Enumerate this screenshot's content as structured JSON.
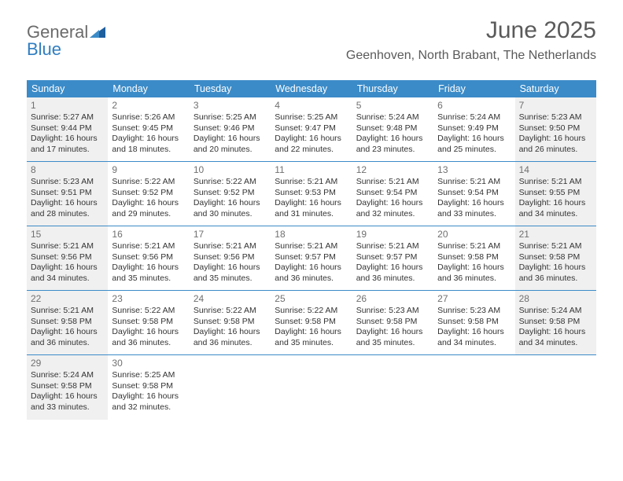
{
  "logo": {
    "text1": "General",
    "text2": "Blue"
  },
  "title": "June 2025",
  "location": "Geenhoven, North Brabant, The Netherlands",
  "colors": {
    "header_bg": "#3b8bc8",
    "header_text": "#ffffff",
    "shade_bg": "#f0f0f0",
    "border": "#3b8bc8",
    "body_text": "#333333",
    "num_text": "#707070",
    "title_text": "#5a5a5a",
    "logo_gray": "#6b6b6b",
    "logo_blue": "#2f7ec2"
  },
  "day_headers": [
    "Sunday",
    "Monday",
    "Tuesday",
    "Wednesday",
    "Thursday",
    "Friday",
    "Saturday"
  ],
  "cells": [
    {
      "num": "1",
      "shade": true,
      "sunrise": "Sunrise: 5:27 AM",
      "sunset": "Sunset: 9:44 PM",
      "day1": "Daylight: 16 hours",
      "day2": "and 17 minutes."
    },
    {
      "num": "2",
      "shade": false,
      "sunrise": "Sunrise: 5:26 AM",
      "sunset": "Sunset: 9:45 PM",
      "day1": "Daylight: 16 hours",
      "day2": "and 18 minutes."
    },
    {
      "num": "3",
      "shade": false,
      "sunrise": "Sunrise: 5:25 AM",
      "sunset": "Sunset: 9:46 PM",
      "day1": "Daylight: 16 hours",
      "day2": "and 20 minutes."
    },
    {
      "num": "4",
      "shade": false,
      "sunrise": "Sunrise: 5:25 AM",
      "sunset": "Sunset: 9:47 PM",
      "day1": "Daylight: 16 hours",
      "day2": "and 22 minutes."
    },
    {
      "num": "5",
      "shade": false,
      "sunrise": "Sunrise: 5:24 AM",
      "sunset": "Sunset: 9:48 PM",
      "day1": "Daylight: 16 hours",
      "day2": "and 23 minutes."
    },
    {
      "num": "6",
      "shade": false,
      "sunrise": "Sunrise: 5:24 AM",
      "sunset": "Sunset: 9:49 PM",
      "day1": "Daylight: 16 hours",
      "day2": "and 25 minutes."
    },
    {
      "num": "7",
      "shade": true,
      "sunrise": "Sunrise: 5:23 AM",
      "sunset": "Sunset: 9:50 PM",
      "day1": "Daylight: 16 hours",
      "day2": "and 26 minutes."
    },
    {
      "num": "8",
      "shade": true,
      "sunrise": "Sunrise: 5:23 AM",
      "sunset": "Sunset: 9:51 PM",
      "day1": "Daylight: 16 hours",
      "day2": "and 28 minutes."
    },
    {
      "num": "9",
      "shade": false,
      "sunrise": "Sunrise: 5:22 AM",
      "sunset": "Sunset: 9:52 PM",
      "day1": "Daylight: 16 hours",
      "day2": "and 29 minutes."
    },
    {
      "num": "10",
      "shade": false,
      "sunrise": "Sunrise: 5:22 AM",
      "sunset": "Sunset: 9:52 PM",
      "day1": "Daylight: 16 hours",
      "day2": "and 30 minutes."
    },
    {
      "num": "11",
      "shade": false,
      "sunrise": "Sunrise: 5:21 AM",
      "sunset": "Sunset: 9:53 PM",
      "day1": "Daylight: 16 hours",
      "day2": "and 31 minutes."
    },
    {
      "num": "12",
      "shade": false,
      "sunrise": "Sunrise: 5:21 AM",
      "sunset": "Sunset: 9:54 PM",
      "day1": "Daylight: 16 hours",
      "day2": "and 32 minutes."
    },
    {
      "num": "13",
      "shade": false,
      "sunrise": "Sunrise: 5:21 AM",
      "sunset": "Sunset: 9:54 PM",
      "day1": "Daylight: 16 hours",
      "day2": "and 33 minutes."
    },
    {
      "num": "14",
      "shade": true,
      "sunrise": "Sunrise: 5:21 AM",
      "sunset": "Sunset: 9:55 PM",
      "day1": "Daylight: 16 hours",
      "day2": "and 34 minutes."
    },
    {
      "num": "15",
      "shade": true,
      "sunrise": "Sunrise: 5:21 AM",
      "sunset": "Sunset: 9:56 PM",
      "day1": "Daylight: 16 hours",
      "day2": "and 34 minutes."
    },
    {
      "num": "16",
      "shade": false,
      "sunrise": "Sunrise: 5:21 AM",
      "sunset": "Sunset: 9:56 PM",
      "day1": "Daylight: 16 hours",
      "day2": "and 35 minutes."
    },
    {
      "num": "17",
      "shade": false,
      "sunrise": "Sunrise: 5:21 AM",
      "sunset": "Sunset: 9:56 PM",
      "day1": "Daylight: 16 hours",
      "day2": "and 35 minutes."
    },
    {
      "num": "18",
      "shade": false,
      "sunrise": "Sunrise: 5:21 AM",
      "sunset": "Sunset: 9:57 PM",
      "day1": "Daylight: 16 hours",
      "day2": "and 36 minutes."
    },
    {
      "num": "19",
      "shade": false,
      "sunrise": "Sunrise: 5:21 AM",
      "sunset": "Sunset: 9:57 PM",
      "day1": "Daylight: 16 hours",
      "day2": "and 36 minutes."
    },
    {
      "num": "20",
      "shade": false,
      "sunrise": "Sunrise: 5:21 AM",
      "sunset": "Sunset: 9:58 PM",
      "day1": "Daylight: 16 hours",
      "day2": "and 36 minutes."
    },
    {
      "num": "21",
      "shade": true,
      "sunrise": "Sunrise: 5:21 AM",
      "sunset": "Sunset: 9:58 PM",
      "day1": "Daylight: 16 hours",
      "day2": "and 36 minutes."
    },
    {
      "num": "22",
      "shade": true,
      "sunrise": "Sunrise: 5:21 AM",
      "sunset": "Sunset: 9:58 PM",
      "day1": "Daylight: 16 hours",
      "day2": "and 36 minutes."
    },
    {
      "num": "23",
      "shade": false,
      "sunrise": "Sunrise: 5:22 AM",
      "sunset": "Sunset: 9:58 PM",
      "day1": "Daylight: 16 hours",
      "day2": "and 36 minutes."
    },
    {
      "num": "24",
      "shade": false,
      "sunrise": "Sunrise: 5:22 AM",
      "sunset": "Sunset: 9:58 PM",
      "day1": "Daylight: 16 hours",
      "day2": "and 36 minutes."
    },
    {
      "num": "25",
      "shade": false,
      "sunrise": "Sunrise: 5:22 AM",
      "sunset": "Sunset: 9:58 PM",
      "day1": "Daylight: 16 hours",
      "day2": "and 35 minutes."
    },
    {
      "num": "26",
      "shade": false,
      "sunrise": "Sunrise: 5:23 AM",
      "sunset": "Sunset: 9:58 PM",
      "day1": "Daylight: 16 hours",
      "day2": "and 35 minutes."
    },
    {
      "num": "27",
      "shade": false,
      "sunrise": "Sunrise: 5:23 AM",
      "sunset": "Sunset: 9:58 PM",
      "day1": "Daylight: 16 hours",
      "day2": "and 34 minutes."
    },
    {
      "num": "28",
      "shade": true,
      "sunrise": "Sunrise: 5:24 AM",
      "sunset": "Sunset: 9:58 PM",
      "day1": "Daylight: 16 hours",
      "day2": "and 34 minutes."
    },
    {
      "num": "29",
      "shade": true,
      "sunrise": "Sunrise: 5:24 AM",
      "sunset": "Sunset: 9:58 PM",
      "day1": "Daylight: 16 hours",
      "day2": "and 33 minutes."
    },
    {
      "num": "30",
      "shade": false,
      "sunrise": "Sunrise: 5:25 AM",
      "sunset": "Sunset: 9:58 PM",
      "day1": "Daylight: 16 hours",
      "day2": "and 32 minutes."
    },
    {
      "empty": true
    },
    {
      "empty": true
    },
    {
      "empty": true
    },
    {
      "empty": true
    },
    {
      "empty": true
    }
  ]
}
